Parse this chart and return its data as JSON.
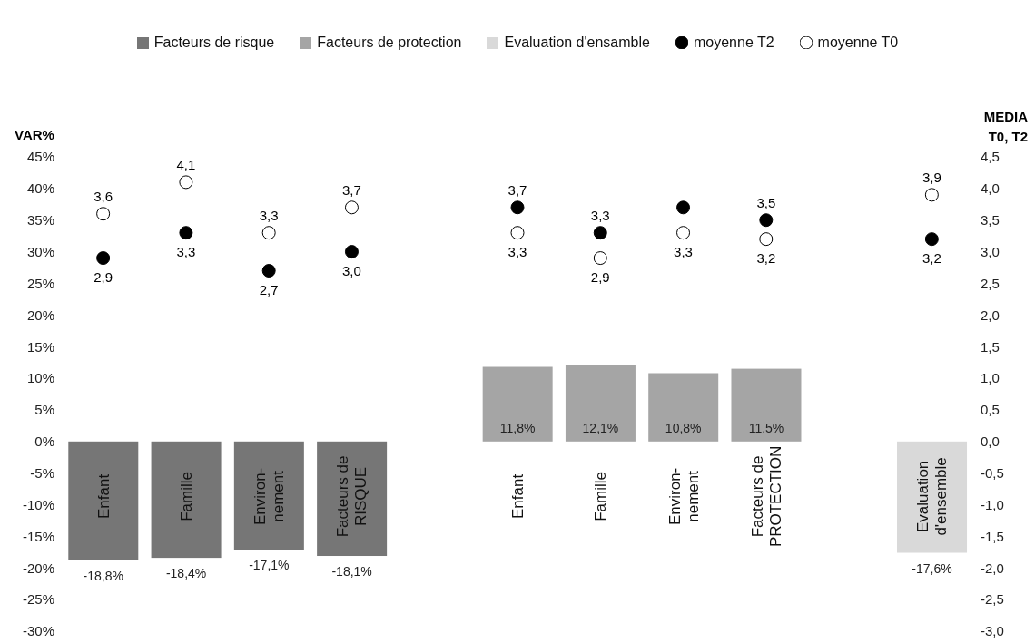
{
  "chart_data": {
    "type": "bar",
    "ylabel": "VAR%",
    "y2label": "MEDIA T0, T2",
    "legend": "top",
    "marker": "circle",
    "categories": [
      "Enfant",
      "Famille",
      "Environ-\nnement",
      "Facteurs de\nRISQUE",
      null,
      "Enfant",
      "Famille",
      "Environ-\nnement",
      "Facteurs de\nPROTECTION",
      null,
      "Evaluation\nd'ensemble"
    ],
    "series": [
      {
        "name": "Facteurs de risque",
        "color": "#767676",
        "values": [
          -18.8,
          -18.4,
          -17.1,
          -18.1,
          null,
          null,
          null,
          null,
          null,
          null,
          null
        ],
        "value_labels": [
          "-18,8%",
          "-18,4%",
          "-17,1%",
          "-18,1%",
          null,
          null,
          null,
          null,
          null,
          null,
          null
        ]
      },
      {
        "name": "Facteurs de protection",
        "color": "#a5a5a5",
        "values": [
          null,
          null,
          null,
          null,
          null,
          11.8,
          12.1,
          10.8,
          11.5,
          null,
          null
        ],
        "value_labels": [
          null,
          null,
          null,
          null,
          null,
          "11,8%",
          "12,1%",
          "10,8%",
          "11,5%",
          null,
          null
        ]
      },
      {
        "name": "Evaluation d'ensamble",
        "color": "#d9d9d9",
        "values": [
          null,
          null,
          null,
          null,
          null,
          null,
          null,
          null,
          null,
          null,
          -17.6
        ],
        "value_labels": [
          null,
          null,
          null,
          null,
          null,
          null,
          null,
          null,
          null,
          null,
          "-17,6%"
        ]
      },
      {
        "name": "moyenne T2",
        "type": "scatter",
        "axis": "y2",
        "color": "#000000",
        "values": [
          2.9,
          3.3,
          2.7,
          3.0,
          null,
          3.7,
          3.3,
          3.7,
          3.5,
          null,
          3.2
        ],
        "value_labels": [
          "2,9",
          "3,3",
          "2,7",
          "3,0",
          null,
          "3,7",
          "3,3",
          null,
          "3,5",
          null,
          "3,2"
        ]
      },
      {
        "name": "moyenne T0",
        "type": "scatter",
        "axis": "y2",
        "color": "#ffffff",
        "values": [
          3.6,
          4.1,
          3.3,
          3.7,
          null,
          3.3,
          2.9,
          3.3,
          3.2,
          null,
          3.9
        ],
        "value_labels": [
          "3,6",
          "4,1",
          "3,3",
          "3,7",
          null,
          "3,3",
          "2,9",
          "3,3",
          "3,2",
          null,
          "3,9"
        ]
      }
    ],
    "ylim": [
      -30,
      45
    ],
    "yticks": [
      {
        "value": 45,
        "label": "45%"
      },
      {
        "value": 40,
        "label": "40%"
      },
      {
        "value": 35,
        "label": "35%"
      },
      {
        "value": 30,
        "label": "30%"
      },
      {
        "value": 25,
        "label": "25%"
      },
      {
        "value": 20,
        "label": "20%"
      },
      {
        "value": 15,
        "label": "15%"
      },
      {
        "value": 10,
        "label": "10%"
      },
      {
        "value": 5,
        "label": "5%"
      },
      {
        "value": 0,
        "label": "0%"
      },
      {
        "value": -5,
        "label": "-5%"
      },
      {
        "value": -10,
        "label": "-10%"
      },
      {
        "value": -15,
        "label": "-15%"
      },
      {
        "value": -20,
        "label": "-20%"
      },
      {
        "value": -25,
        "label": "-25%"
      },
      {
        "value": -30,
        "label": "-30%"
      }
    ],
    "y2lim": [
      -3,
      4.5
    ],
    "y2ticks": [
      {
        "value": 4.5,
        "label": "4,5"
      },
      {
        "value": 4,
        "label": "4,0"
      },
      {
        "value": 3.5,
        "label": "3,5"
      },
      {
        "value": 3,
        "label": "3,0"
      },
      {
        "value": 2.5,
        "label": "2,5"
      },
      {
        "value": 2,
        "label": "2,0"
      },
      {
        "value": 1.5,
        "label": "1,5"
      },
      {
        "value": 1,
        "label": "1,0"
      },
      {
        "value": 0.5,
        "label": "0,5"
      },
      {
        "value": 0,
        "label": "0,0"
      },
      {
        "value": -0.5,
        "label": "-0,5"
      },
      {
        "value": -1,
        "label": "-1,0"
      },
      {
        "value": -1.5,
        "label": "-1,5"
      },
      {
        "value": -2,
        "label": "-2,0"
      },
      {
        "value": -2.5,
        "label": "-2,5"
      },
      {
        "value": -3,
        "label": "-3,0"
      }
    ]
  }
}
